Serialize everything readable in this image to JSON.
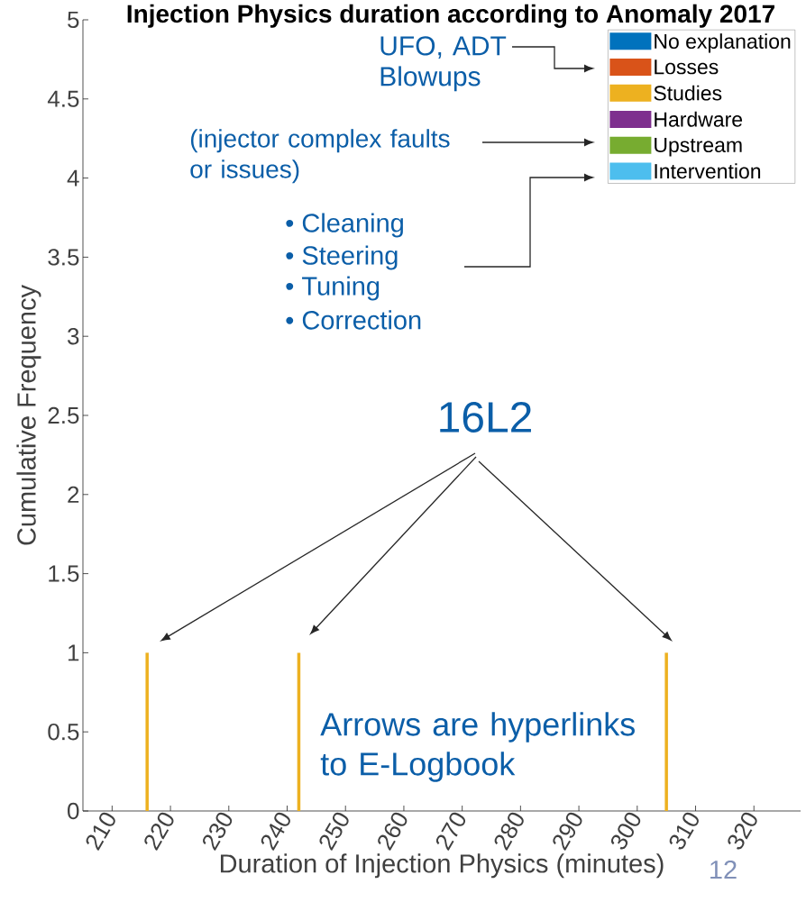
{
  "chart_data": {
    "type": "bar",
    "title": "Injection Physics duration according to Anomaly 2017",
    "xlabel": "Duration of Injection Physics (minutes)",
    "ylabel": "Cumulative Frequency",
    "x": [
      216,
      242,
      305
    ],
    "series": [
      {
        "name": "No explanation",
        "color": "#0072bd",
        "values": [
          null,
          null,
          null
        ]
      },
      {
        "name": "Losses",
        "color": "#d95319",
        "values": [
          null,
          null,
          null
        ]
      },
      {
        "name": "Studies",
        "color": "#edb120",
        "values": [
          1,
          1,
          1
        ]
      },
      {
        "name": "Hardware",
        "color": "#7e2f8e",
        "values": [
          null,
          null,
          null
        ]
      },
      {
        "name": "Upstream",
        "color": "#77ac30",
        "values": [
          null,
          null,
          null
        ]
      },
      {
        "name": "Intervention",
        "color": "#4dbeee",
        "values": [
          null,
          null,
          null
        ]
      }
    ],
    "xlim": [
      205,
      328
    ],
    "xticks": [
      210,
      220,
      230,
      240,
      250,
      260,
      270,
      280,
      290,
      300,
      310,
      320
    ],
    "ylim": [
      0,
      5
    ],
    "yticks": [
      0,
      0.5,
      1,
      1.5,
      2,
      2.5,
      3,
      3.5,
      4,
      4.5,
      5
    ],
    "legend": "top right",
    "grid": false,
    "annotations": [
      "UFO, ADT Blowups",
      "(injector complex faults or issues)",
      "• Cleaning",
      "• Steering",
      "• Tuning",
      "• Correction",
      "16L2",
      "Arrows are hyperlinks to E-Logbook",
      "12"
    ]
  }
}
